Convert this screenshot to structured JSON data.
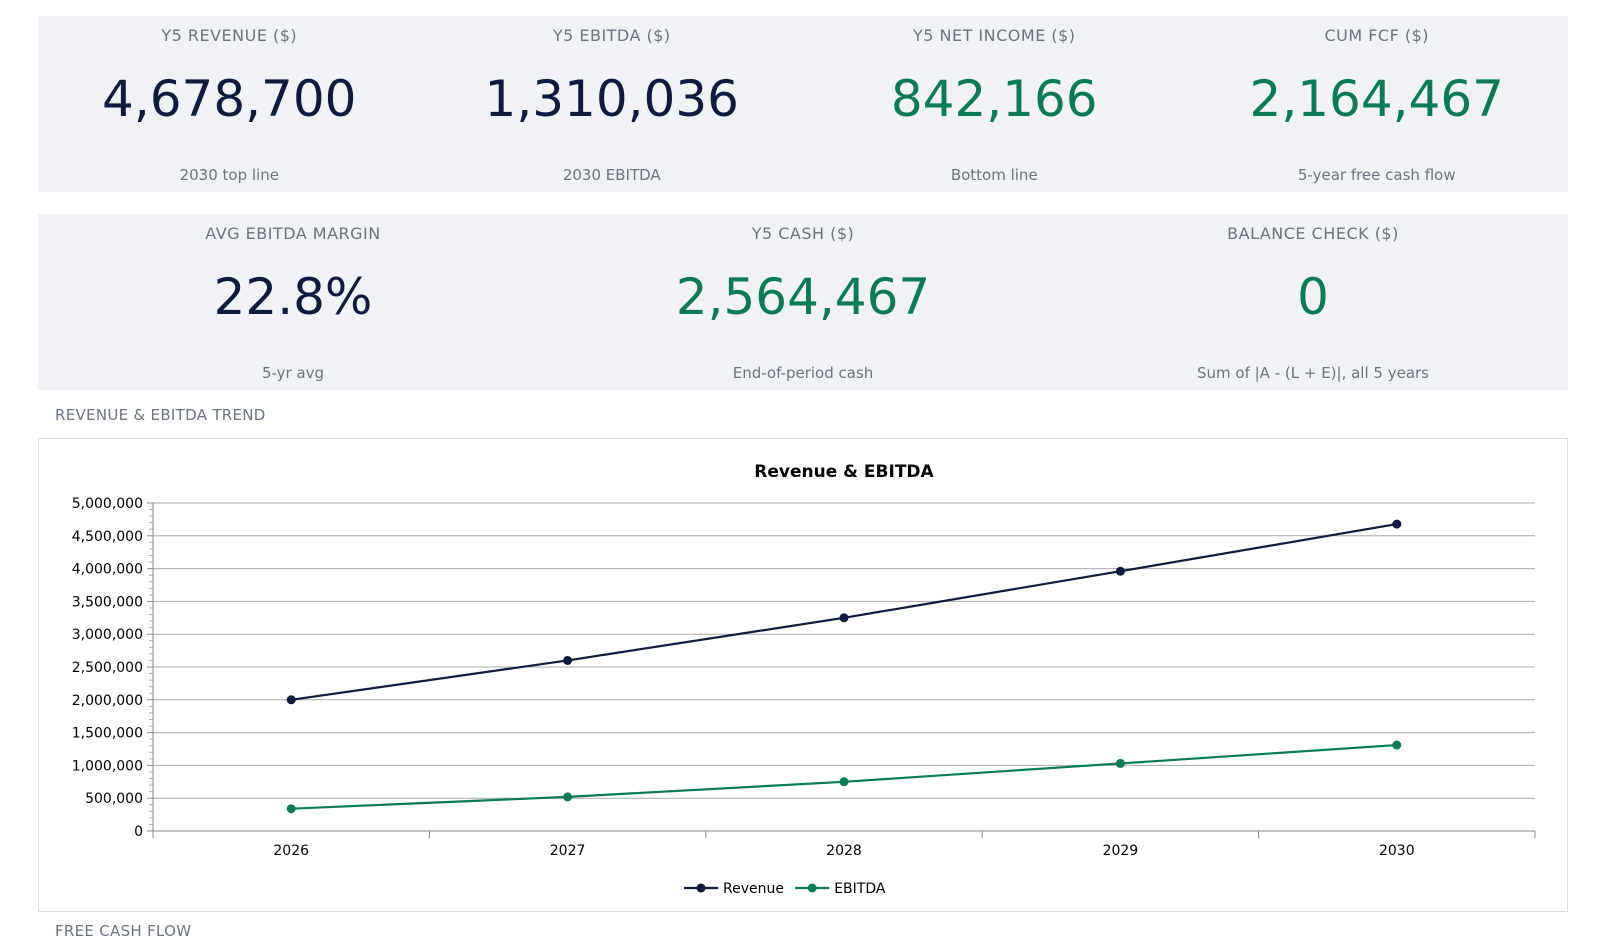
{
  "kpis_row1": [
    {
      "label": "Y5 REVENUE ($)",
      "value": "4,678,700",
      "sub": "2030 top line",
      "color": "navy"
    },
    {
      "label": "Y5 EBITDA ($)",
      "value": "1,310,036",
      "sub": "2030 EBITDA",
      "color": "navy"
    },
    {
      "label": "Y5 NET INCOME ($)",
      "value": "842,166",
      "sub": "Bottom line",
      "color": "green"
    },
    {
      "label": "CUM FCF ($)",
      "value": "2,164,467",
      "sub": "5-year free cash flow",
      "color": "green"
    }
  ],
  "kpis_row2": [
    {
      "label": "AVG EBITDA MARGIN",
      "value": "22.8%",
      "sub": "5-yr avg",
      "color": "navy"
    },
    {
      "label": "Y5 CASH ($)",
      "value": "2,564,467",
      "sub": "End-of-period cash",
      "color": "green"
    },
    {
      "label": "BALANCE CHECK ($)",
      "value": "0",
      "sub": "Sum of |A - (L + E)|, all 5 years",
      "color": "green"
    }
  ],
  "sections": {
    "trend_title": "REVENUE & EBITDA TREND",
    "fcf_title": "FREE CASH FLOW"
  },
  "colors": {
    "navy": "#0f1b3d",
    "green": "#0b7a55",
    "grid": "#a9a9a9"
  },
  "chart_data": {
    "type": "line",
    "title": "Revenue & EBITDA",
    "categories": [
      "2026",
      "2027",
      "2028",
      "2029",
      "2030"
    ],
    "series": [
      {
        "name": "Revenue",
        "values": [
          2000000,
          2600000,
          3250000,
          3960000,
          4678700
        ],
        "color": "#0f1b3d"
      },
      {
        "name": "EBITDA",
        "values": [
          340000,
          520000,
          750000,
          1030000,
          1310036
        ],
        "color": "#0b7a55"
      }
    ],
    "ylim": [
      0,
      5000000
    ],
    "yticks": [
      "0",
      "500,000",
      "1,000,000",
      "1,500,000",
      "2,000,000",
      "2,500,000",
      "3,000,000",
      "3,500,000",
      "4,000,000",
      "4,500,000",
      "5,000,000"
    ],
    "grid": true,
    "legend": "bottom-center"
  }
}
